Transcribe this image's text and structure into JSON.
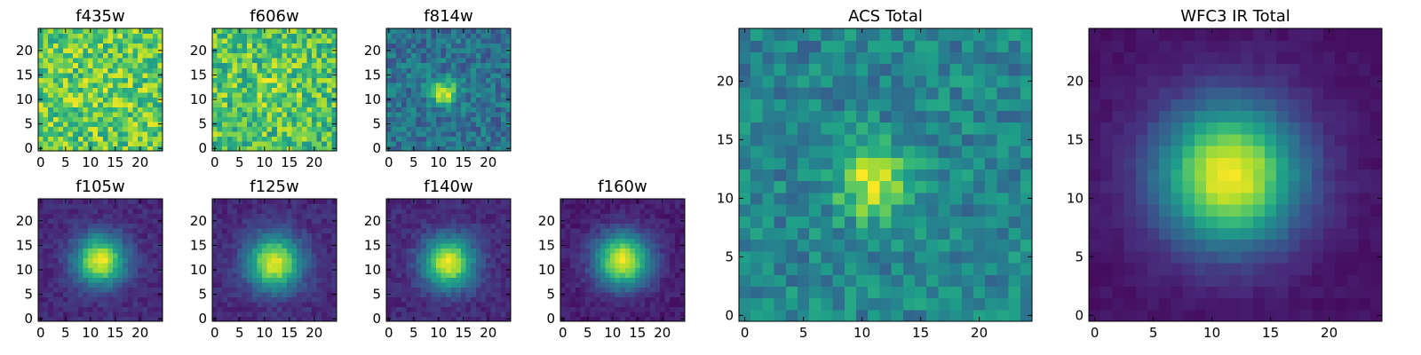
{
  "chart_data": [
    {
      "type": "heatmap",
      "title": "f435w",
      "colormap": "viridis",
      "grid": false,
      "image_size": [
        25,
        25
      ],
      "blob": {
        "center": [
          12,
          12
        ],
        "sigma": 3,
        "amplitude": 0.05,
        "noise": 0.45,
        "base": 0.75,
        "seed": 435
      },
      "xlim": [
        -0.5,
        24.5
      ],
      "ylim": [
        -0.5,
        24.5
      ],
      "xticks": [
        0,
        5,
        10,
        15,
        20
      ],
      "yticks": [
        0,
        5,
        10,
        15,
        20
      ]
    },
    {
      "type": "heatmap",
      "title": "f606w",
      "colormap": "viridis",
      "grid": false,
      "image_size": [
        25,
        25
      ],
      "blob": {
        "center": [
          12,
          12
        ],
        "sigma": 3,
        "amplitude": 0.08,
        "noise": 0.45,
        "base": 0.72,
        "seed": 606
      },
      "xlim": [
        -0.5,
        24.5
      ],
      "ylim": [
        -0.5,
        24.5
      ],
      "xticks": [
        0,
        5,
        10,
        15,
        20
      ],
      "yticks": [
        0,
        5,
        10,
        15,
        20
      ]
    },
    {
      "type": "heatmap",
      "title": "f814w",
      "colormap": "viridis",
      "grid": false,
      "image_size": [
        25,
        25
      ],
      "blob": {
        "center": [
          11,
          11.5
        ],
        "sigma": 1.8,
        "amplitude": 0.6,
        "noise": 0.3,
        "base": 0.38,
        "seed": 814
      },
      "xlim": [
        -0.5,
        24.5
      ],
      "ylim": [
        -0.5,
        24.5
      ],
      "xticks": [
        0,
        5,
        10,
        15,
        20
      ],
      "yticks": [
        0,
        5,
        10,
        15,
        20
      ]
    },
    {
      "type": "heatmap",
      "title": "f105w",
      "colormap": "viridis",
      "grid": false,
      "image_size": [
        25,
        25
      ],
      "blob": {
        "center": [
          12,
          12
        ],
        "sigma": 3.5,
        "amplitude": 0.85,
        "noise": 0.12,
        "base": 0.12,
        "seed": 105
      },
      "xlim": [
        -0.5,
        24.5
      ],
      "ylim": [
        -0.5,
        24.5
      ],
      "xticks": [
        0,
        5,
        10,
        15,
        20
      ],
      "yticks": [
        0,
        5,
        10,
        15,
        20
      ]
    },
    {
      "type": "heatmap",
      "title": "f125w",
      "colormap": "viridis",
      "grid": false,
      "image_size": [
        25,
        25
      ],
      "blob": {
        "center": [
          12,
          11.5
        ],
        "sigma": 3.8,
        "amplitude": 0.85,
        "noise": 0.12,
        "base": 0.12,
        "seed": 125
      },
      "xlim": [
        -0.5,
        24.5
      ],
      "ylim": [
        -0.5,
        24.5
      ],
      "xticks": [
        0,
        5,
        10,
        15,
        20
      ],
      "yticks": [
        0,
        5,
        10,
        15,
        20
      ]
    },
    {
      "type": "heatmap",
      "title": "f140w",
      "colormap": "viridis",
      "grid": false,
      "image_size": [
        25,
        25
      ],
      "blob": {
        "center": [
          12,
          11.5
        ],
        "sigma": 3.6,
        "amplitude": 0.85,
        "noise": 0.12,
        "base": 0.12,
        "seed": 140
      },
      "xlim": [
        -0.5,
        24.5
      ],
      "ylim": [
        -0.5,
        24.5
      ],
      "xticks": [
        0,
        5,
        10,
        15,
        20
      ],
      "yticks": [
        0,
        5,
        10,
        15,
        20
      ]
    },
    {
      "type": "heatmap",
      "title": "f160w",
      "colormap": "viridis",
      "grid": false,
      "image_size": [
        25,
        25
      ],
      "blob": {
        "center": [
          12,
          12
        ],
        "sigma": 3.8,
        "amplitude": 0.9,
        "noise": 0.1,
        "base": 0.08,
        "seed": 160
      },
      "xlim": [
        -0.5,
        24.5
      ],
      "ylim": [
        -0.5,
        24.5
      ],
      "xticks": [
        0,
        5,
        10,
        15,
        20
      ],
      "yticks": [
        0,
        5,
        10,
        15,
        20
      ]
    },
    {
      "type": "heatmap",
      "title": "ACS Total",
      "colormap": "viridis",
      "grid": false,
      "image_size": [
        25,
        25
      ],
      "blob": {
        "center": [
          11,
          11.5
        ],
        "sigma": 2.2,
        "amplitude": 0.5,
        "noise": 0.3,
        "base": 0.45,
        "seed": 999
      },
      "xlim": [
        -0.5,
        24.5
      ],
      "ylim": [
        -0.5,
        24.5
      ],
      "xticks": [
        0,
        5,
        10,
        15,
        20
      ],
      "yticks": [
        0,
        5,
        10,
        15,
        20
      ]
    },
    {
      "type": "heatmap",
      "title": "WFC3 IR Total",
      "colormap": "viridis",
      "grid": false,
      "image_size": [
        25,
        25
      ],
      "blob": {
        "center": [
          11.5,
          12
        ],
        "sigma": 4.2,
        "amplitude": 0.95,
        "noise": 0.05,
        "base": 0.05,
        "seed": 1000
      },
      "xlim": [
        -0.5,
        24.5
      ],
      "ylim": [
        -0.5,
        24.5
      ],
      "xticks": [
        0,
        5,
        10,
        15,
        20
      ],
      "yticks": [
        0,
        5,
        10,
        15,
        20
      ]
    }
  ]
}
